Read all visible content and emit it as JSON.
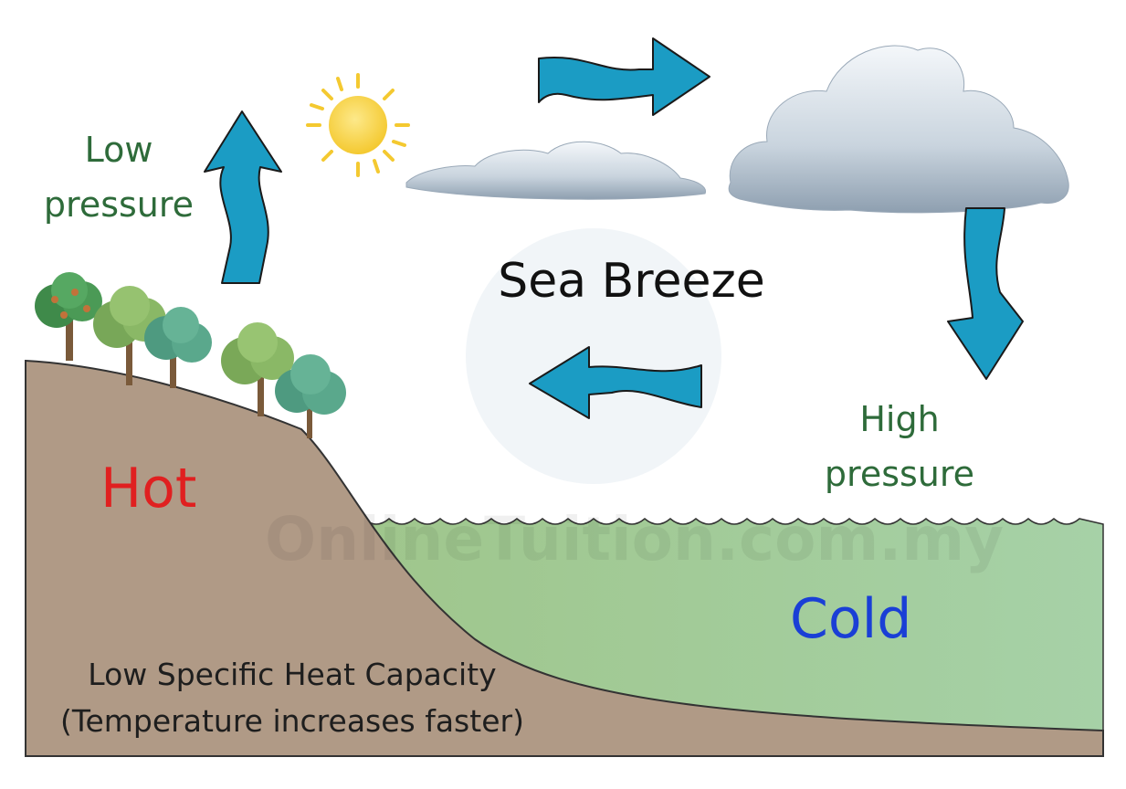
{
  "title": "Sea Breeze",
  "labels": {
    "low_pressure": [
      "Low",
      "pressure"
    ],
    "high_pressure": [
      "High",
      "pressure"
    ],
    "hot": "Hot",
    "cold": "Cold",
    "land_note": [
      "Low Specific Heat Capacity",
      "(Temperature increases faster)"
    ]
  },
  "watermark": "OnlineTuition.com.my",
  "colors": {
    "arrow": "#1b9cc4",
    "land": "#b09a86",
    "sea": "#a3cc9e",
    "sun": "#f9d84f",
    "pressure_text": "#2e6b3a",
    "hot_text": "#e02020",
    "cold_text": "#1a3fd6"
  },
  "icons": [
    "sun-icon",
    "cloud-icon",
    "tree-icon",
    "arrow-icon"
  ]
}
